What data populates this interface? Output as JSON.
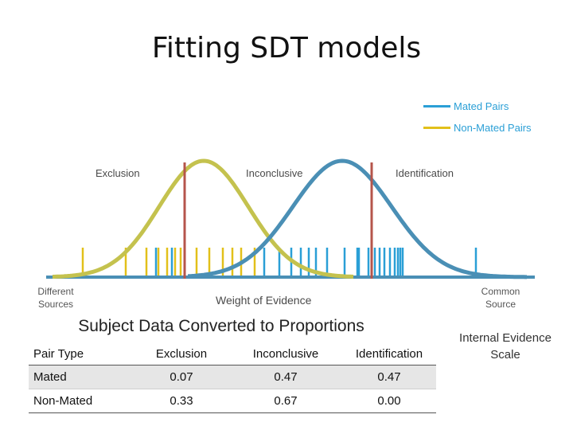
{
  "title": "Fitting SDT models",
  "legend": {
    "mated": {
      "label": "Mated Pairs",
      "color": "#2a9fd6"
    },
    "non_mated": {
      "label": "Non-Mated Pairs",
      "color": "#e2c01a"
    }
  },
  "region_labels": {
    "exclusion": "Exclusion",
    "inconclusive": "Inconclusive",
    "identification": "Identification"
  },
  "axis": {
    "left": "Different Sources",
    "center": "Weight of Evidence",
    "right": "Common Source"
  },
  "subtitle": "Subject Data Converted to Proportions",
  "internal_label": "Internal Evidence Scale",
  "colors": {
    "mated_curve": "#4a8fb5",
    "non_mated_curve": "#c4c24e",
    "criterion": "#b5554b",
    "axis": "#4a8fb5",
    "mated_tick": "#2a9fd6",
    "non_mated_tick": "#e2c01a"
  },
  "table": {
    "headers": [
      "Pair Type",
      "Exclusion",
      "Inconclusive",
      "Identification"
    ],
    "rows": [
      [
        "Mated",
        "0.07",
        "0.47",
        "0.47"
      ],
      [
        "Non-Mated",
        "0.33",
        "0.67",
        "0.00"
      ]
    ]
  }
}
